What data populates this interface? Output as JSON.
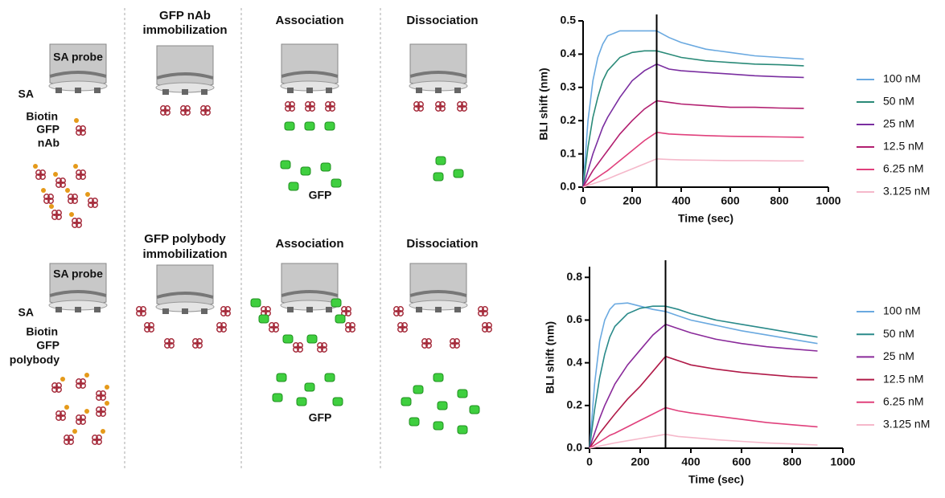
{
  "schematic": {
    "rows": [
      {
        "probe": "SA probe",
        "sa": "SA",
        "biotin": "Biotin",
        "ligand": [
          "GFP",
          "nAb"
        ],
        "immobilization": [
          "GFP nAb",
          "immobilization"
        ],
        "association": "Association",
        "dissociation": "Dissociation",
        "analyte": "GFP"
      },
      {
        "probe": "SA probe",
        "sa": "SA",
        "biotin": "Biotin",
        "ligand": [
          "GFP",
          "polybody"
        ],
        "immobilization": [
          "GFP polybody",
          "immobilization"
        ],
        "association": "Association",
        "dissociation": "Dissociation",
        "analyte": "GFP"
      }
    ]
  },
  "chart_data": [
    {
      "type": "line",
      "xlabel": "Time (sec)",
      "ylabel": "BLI shift (nm)",
      "x": [
        0,
        20,
        40,
        60,
        80,
        100,
        150,
        200,
        250,
        300,
        350,
        400,
        500,
        600,
        700,
        800,
        900
      ],
      "xlim": [
        0,
        1000
      ],
      "xticks": [
        0,
        200,
        400,
        600,
        800,
        1000
      ],
      "ylim": [
        0,
        0.5
      ],
      "yticks": [
        {
          "value": 0,
          "label": "0.0"
        },
        0.1,
        0.2,
        0.3,
        0.4,
        0.5
      ],
      "vline": 300,
      "series": [
        {
          "name": "100 nM",
          "color": "#6aa9e0",
          "values": [
            0,
            0.2,
            0.32,
            0.39,
            0.43,
            0.455,
            0.47,
            0.47,
            0.47,
            0.47,
            0.45,
            0.435,
            0.415,
            0.405,
            0.395,
            0.39,
            0.385
          ]
        },
        {
          "name": "50 nM",
          "color": "#2a8a78",
          "values": [
            0,
            0.12,
            0.21,
            0.27,
            0.32,
            0.35,
            0.39,
            0.405,
            0.41,
            0.41,
            0.4,
            0.39,
            0.38,
            0.375,
            0.37,
            0.368,
            0.365
          ]
        },
        {
          "name": "25 nM",
          "color": "#7a2ea0",
          "values": [
            0,
            0.05,
            0.1,
            0.14,
            0.18,
            0.21,
            0.27,
            0.32,
            0.35,
            0.37,
            0.355,
            0.35,
            0.345,
            0.34,
            0.335,
            0.332,
            0.33
          ]
        },
        {
          "name": "12.5 nM",
          "color": "#b21f70",
          "values": [
            0,
            0.025,
            0.05,
            0.07,
            0.09,
            0.11,
            0.16,
            0.2,
            0.235,
            0.26,
            0.255,
            0.25,
            0.245,
            0.24,
            0.24,
            0.238,
            0.237
          ]
        },
        {
          "name": "6.25 nM",
          "color": "#e0407c",
          "values": [
            0,
            0.01,
            0.02,
            0.03,
            0.04,
            0.05,
            0.08,
            0.11,
            0.14,
            0.165,
            0.16,
            0.158,
            0.155,
            0.153,
            0.152,
            0.151,
            0.15
          ]
        },
        {
          "name": "3.125 nM",
          "color": "#f5b8ca",
          "values": [
            0,
            0.005,
            0.01,
            0.015,
            0.02,
            0.025,
            0.04,
            0.055,
            0.07,
            0.085,
            0.083,
            0.082,
            0.081,
            0.08,
            0.08,
            0.079,
            0.079
          ]
        }
      ]
    },
    {
      "type": "line",
      "xlabel": "Time (sec)",
      "ylabel": "BLI shift (nm)",
      "x": [
        0,
        20,
        40,
        60,
        80,
        100,
        150,
        200,
        250,
        300,
        350,
        400,
        500,
        600,
        700,
        800,
        900
      ],
      "xlim": [
        0,
        1000
      ],
      "xticks": [
        0,
        200,
        400,
        600,
        800,
        1000
      ],
      "ylim": [
        0,
        0.85
      ],
      "yticks": [
        {
          "value": 0,
          "label": "0.0"
        },
        0.2,
        0.4,
        0.6,
        0.8
      ],
      "vline": 300,
      "series": [
        {
          "name": "100 nM",
          "color": "#6aa9e0",
          "values": [
            0,
            0.3,
            0.5,
            0.6,
            0.65,
            0.675,
            0.68,
            0.665,
            0.65,
            0.64,
            0.62,
            0.6,
            0.575,
            0.55,
            0.53,
            0.51,
            0.49
          ]
        },
        {
          "name": "50 nM",
          "color": "#2a8a8a",
          "values": [
            0,
            0.18,
            0.33,
            0.44,
            0.52,
            0.57,
            0.63,
            0.655,
            0.665,
            0.665,
            0.65,
            0.63,
            0.6,
            0.58,
            0.56,
            0.54,
            0.52
          ]
        },
        {
          "name": "25 nM",
          "color": "#8a2a9a",
          "values": [
            0,
            0.07,
            0.14,
            0.2,
            0.25,
            0.3,
            0.39,
            0.46,
            0.53,
            0.58,
            0.56,
            0.54,
            0.51,
            0.49,
            0.475,
            0.465,
            0.455
          ]
        },
        {
          "name": "12.5 nM",
          "color": "#b01a48",
          "values": [
            0,
            0.035,
            0.07,
            0.1,
            0.13,
            0.16,
            0.23,
            0.29,
            0.36,
            0.43,
            0.41,
            0.39,
            0.37,
            0.355,
            0.345,
            0.335,
            0.33
          ]
        },
        {
          "name": "6.25 nM",
          "color": "#e0407c",
          "values": [
            0,
            0.015,
            0.03,
            0.045,
            0.06,
            0.07,
            0.1,
            0.13,
            0.16,
            0.19,
            0.175,
            0.165,
            0.15,
            0.135,
            0.12,
            0.11,
            0.1
          ]
        },
        {
          "name": "3.125 nM",
          "color": "#f5b8ca",
          "values": [
            0,
            0.005,
            0.01,
            0.015,
            0.02,
            0.025,
            0.035,
            0.045,
            0.055,
            0.065,
            0.055,
            0.05,
            0.04,
            0.032,
            0.025,
            0.02,
            0.015
          ]
        }
      ]
    }
  ]
}
